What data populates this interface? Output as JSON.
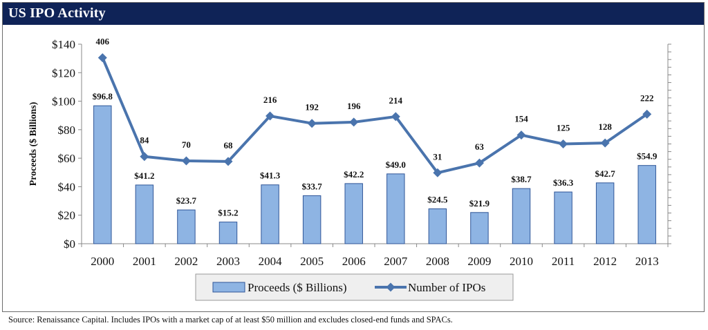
{
  "header": {
    "title": "US IPO Activity"
  },
  "footer": {
    "source": "Source: Renaissance Capital. Includes IPOs with a market cap of at least $50 million and excludes closed-end funds and SPACs."
  },
  "colors": {
    "banner": "#0f2357",
    "bar_fill": "#8eb4e3",
    "bar_stroke": "#2f5597",
    "line": "#4a74ad"
  },
  "chart_data": {
    "type": "bar",
    "title": "US IPO Activity",
    "categories": [
      "2000",
      "2001",
      "2002",
      "2003",
      "2004",
      "2005",
      "2006",
      "2007",
      "2008",
      "2009",
      "2010",
      "2011",
      "2012",
      "2013"
    ],
    "series": [
      {
        "name": "Proceeds ($ Billions)",
        "type": "bar",
        "axis": "left",
        "values": [
          96.8,
          41.2,
          23.7,
          15.2,
          41.3,
          33.7,
          42.2,
          49.0,
          24.5,
          21.9,
          38.7,
          36.3,
          42.7,
          54.9
        ],
        "labels": [
          "$96.8",
          "$41.2",
          "$23.7",
          "$15.2",
          "$41.3",
          "$33.7",
          "$42.2",
          "$49.0",
          "$24.5",
          "$21.9",
          "$38.7",
          "$36.3",
          "$42.7",
          "$54.9"
        ]
      },
      {
        "name": "Number of IPOs",
        "type": "line",
        "axis": "right",
        "values": [
          406,
          84,
          70,
          68,
          216,
          192,
          196,
          214,
          31,
          63,
          154,
          125,
          128,
          222
        ],
        "labels": [
          "406",
          "84",
          "70",
          "68",
          "216",
          "192",
          "196",
          "214",
          "31",
          "63",
          "154",
          "125",
          "128",
          "222"
        ]
      }
    ],
    "ylabel": "Proceeds ($ Billions)",
    "ylim": [
      0,
      140
    ],
    "y_ticks": [
      "$0",
      "$20",
      "$40",
      "$60",
      "$80",
      "$100",
      "$120",
      "$140"
    ],
    "y_tick_values": [
      0,
      20,
      40,
      60,
      80,
      100,
      120,
      140
    ],
    "y2lim": [
      -200,
      450
    ],
    "legend": {
      "position": "bottom",
      "entries": [
        "Proceeds ($ Billions)",
        "Number of IPOs"
      ]
    },
    "grid": false
  }
}
